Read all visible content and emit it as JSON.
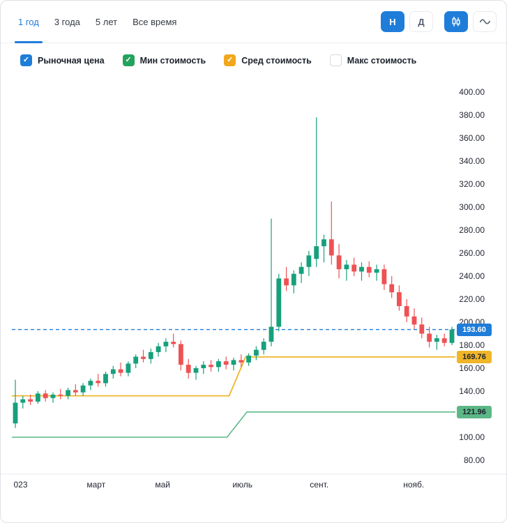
{
  "header": {
    "tabs": [
      {
        "label": "1 год",
        "active": true
      },
      {
        "label": "3 года",
        "active": false
      },
      {
        "label": "5 лет",
        "active": false
      },
      {
        "label": "Все время",
        "active": false
      }
    ],
    "interval_buttons": [
      {
        "label": "Н",
        "active": true
      },
      {
        "label": "Д",
        "active": false
      }
    ],
    "chart_type_buttons": [
      {
        "name": "candlestick",
        "active": true
      },
      {
        "name": "line",
        "active": false
      }
    ],
    "accent_color": "#1f7dd9"
  },
  "legend": {
    "items": [
      {
        "label": "Рыночная цена",
        "checked": true,
        "color": "#1f7dd9"
      },
      {
        "label": "Мин стоимость",
        "checked": true,
        "color": "#23a35e"
      },
      {
        "label": "Сред стоимость",
        "checked": true,
        "color": "#f2a71b"
      },
      {
        "label": "Макс стоимость",
        "checked": false,
        "color": "#ffffff"
      }
    ]
  },
  "chart_data": {
    "type": "candlestick",
    "x_axis_label": "",
    "y_axis_label": "",
    "value_range": [
      80,
      400
    ],
    "y_ticks": [
      400,
      380,
      360,
      340,
      320,
      300,
      280,
      260,
      240,
      220,
      200,
      180,
      160,
      140,
      120,
      100,
      80
    ],
    "x_ticks": [
      {
        "label": "023",
        "pos": 0.004,
        "anchor": "start"
      },
      {
        "label": "март",
        "pos": 0.19
      },
      {
        "label": "май",
        "pos": 0.34
      },
      {
        "label": "июль",
        "pos": 0.52
      },
      {
        "label": "сент.",
        "pos": 0.693
      },
      {
        "label": "нояб.",
        "pos": 0.906
      }
    ],
    "colors": {
      "up": "#16a07c",
      "down": "#ee5253"
    },
    "candles": [
      [
        112,
        150,
        108,
        130
      ],
      [
        130,
        136,
        125,
        133
      ],
      [
        133,
        137,
        128,
        131
      ],
      [
        131,
        140,
        129,
        138
      ],
      [
        138,
        141,
        131,
        134
      ],
      [
        134,
        139,
        130,
        137
      ],
      [
        137,
        142,
        133,
        136
      ],
      [
        136,
        143,
        133,
        141
      ],
      [
        141,
        146,
        136,
        139
      ],
      [
        139,
        147,
        136,
        145
      ],
      [
        145,
        151,
        141,
        149
      ],
      [
        149,
        155,
        144,
        147
      ],
      [
        147,
        157,
        144,
        155
      ],
      [
        155,
        162,
        151,
        159
      ],
      [
        159,
        165,
        153,
        156
      ],
      [
        156,
        166,
        153,
        164
      ],
      [
        164,
        172,
        160,
        170
      ],
      [
        170,
        176,
        165,
        168
      ],
      [
        168,
        177,
        164,
        174
      ],
      [
        174,
        182,
        170,
        179
      ],
      [
        179,
        186,
        174,
        183
      ],
      [
        183,
        190,
        178,
        181
      ],
      [
        181,
        184,
        158,
        163
      ],
      [
        163,
        168,
        151,
        156
      ],
      [
        156,
        162,
        150,
        160
      ],
      [
        160,
        166,
        155,
        163
      ],
      [
        163,
        167,
        157,
        161
      ],
      [
        161,
        168,
        157,
        166
      ],
      [
        166,
        170,
        159,
        163
      ],
      [
        163,
        169,
        158,
        167
      ],
      [
        167,
        172,
        161,
        165
      ],
      [
        165,
        173,
        162,
        171
      ],
      [
        171,
        179,
        167,
        176
      ],
      [
        176,
        186,
        172,
        183
      ],
      [
        183,
        290,
        179,
        196
      ],
      [
        196,
        242,
        192,
        238
      ],
      [
        238,
        248,
        227,
        232
      ],
      [
        232,
        245,
        225,
        242
      ],
      [
        242,
        252,
        234,
        248
      ],
      [
        248,
        262,
        240,
        258
      ],
      [
        255,
        378,
        248,
        266
      ],
      [
        266,
        276,
        252,
        272
      ],
      [
        272,
        305,
        250,
        258
      ],
      [
        258,
        268,
        238,
        246
      ],
      [
        246,
        254,
        236,
        250
      ],
      [
        250,
        256,
        240,
        244
      ],
      [
        244,
        252,
        236,
        248
      ],
      [
        248,
        253,
        239,
        243
      ],
      [
        243,
        250,
        236,
        246
      ],
      [
        246,
        250,
        228,
        233
      ],
      [
        233,
        240,
        221,
        226
      ],
      [
        226,
        232,
        210,
        214
      ],
      [
        214,
        220,
        200,
        205
      ],
      [
        205,
        212,
        194,
        198
      ],
      [
        198,
        204,
        186,
        190
      ],
      [
        190,
        196,
        178,
        183
      ],
      [
        183,
        189,
        176,
        186
      ],
      [
        186,
        190,
        179,
        182
      ],
      [
        182,
        196,
        180,
        193.6
      ]
    ],
    "lines": {
      "market_price": {
        "name": "Рыночная цена",
        "value": 193.6,
        "label": "193.60",
        "style": "dashed",
        "color": "#1f7dd9",
        "badge_text_color": "#ffffff"
      },
      "avg": {
        "name": "Сред стоимость",
        "value": 169.76,
        "label": "169.76",
        "color": "#f0b529",
        "badge_text_color": "#1b212b",
        "points": [
          [
            0,
            136
          ],
          [
            0.49,
            136
          ],
          [
            0.527,
            169.76
          ],
          [
            1,
            169.76
          ]
        ]
      },
      "min": {
        "name": "Мин стоимость",
        "value": 121.96,
        "label": "121.96",
        "color": "#5cb786",
        "badge_text_color": "#1b212b",
        "points": [
          [
            0,
            100
          ],
          [
            0.485,
            100
          ],
          [
            0.53,
            121.96
          ],
          [
            1,
            121.96
          ]
        ]
      }
    }
  }
}
